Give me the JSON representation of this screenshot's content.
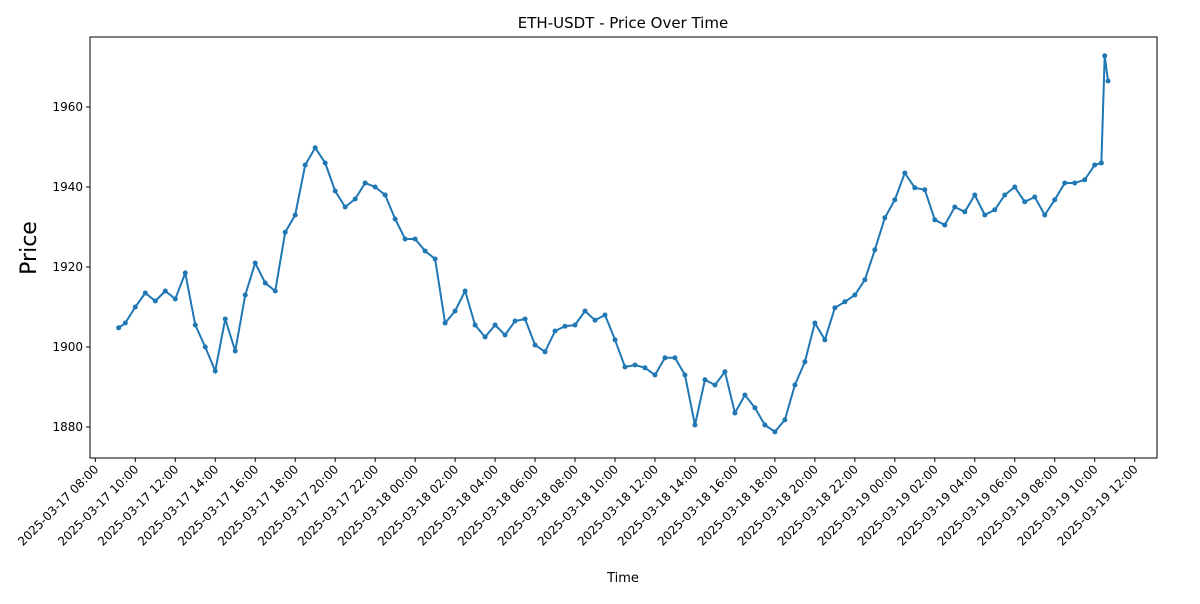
{
  "chart_data": {
    "type": "line",
    "title": "ETH-USDT - Price Over Time",
    "x_label": "Time",
    "y_label": "Price",
    "color": "#1f77b4",
    "x": [
      "2025-03-17 09:10",
      "2025-03-17 09:30",
      "2025-03-17 10:00",
      "2025-03-17 10:30",
      "2025-03-17 11:00",
      "2025-03-17 11:30",
      "2025-03-17 12:00",
      "2025-03-17 12:30",
      "2025-03-17 13:00",
      "2025-03-17 13:30",
      "2025-03-17 14:00",
      "2025-03-17 14:30",
      "2025-03-17 15:00",
      "2025-03-17 15:30",
      "2025-03-17 16:00",
      "2025-03-17 16:30",
      "2025-03-17 17:00",
      "2025-03-17 17:30",
      "2025-03-17 18:00",
      "2025-03-17 18:30",
      "2025-03-17 19:00",
      "2025-03-17 19:30",
      "2025-03-17 20:00",
      "2025-03-17 20:30",
      "2025-03-17 21:00",
      "2025-03-17 21:30",
      "2025-03-17 22:00",
      "2025-03-17 22:30",
      "2025-03-17 23:00",
      "2025-03-17 23:30",
      "2025-03-18 00:00",
      "2025-03-18 00:30",
      "2025-03-18 01:00",
      "2025-03-18 01:30",
      "2025-03-18 02:00",
      "2025-03-18 02:30",
      "2025-03-18 03:00",
      "2025-03-18 03:30",
      "2025-03-18 04:00",
      "2025-03-18 04:30",
      "2025-03-18 05:00",
      "2025-03-18 05:30",
      "2025-03-18 06:00",
      "2025-03-18 06:30",
      "2025-03-18 07:00",
      "2025-03-18 07:30",
      "2025-03-18 08:00",
      "2025-03-18 08:30",
      "2025-03-18 09:00",
      "2025-03-18 09:30",
      "2025-03-18 10:00",
      "2025-03-18 10:30",
      "2025-03-18 11:00",
      "2025-03-18 11:30",
      "2025-03-18 12:00",
      "2025-03-18 12:30",
      "2025-03-18 13:00",
      "2025-03-18 13:30",
      "2025-03-18 14:00",
      "2025-03-18 14:30",
      "2025-03-18 15:00",
      "2025-03-18 15:30",
      "2025-03-18 16:00",
      "2025-03-18 16:30",
      "2025-03-18 17:00",
      "2025-03-18 17:30",
      "2025-03-18 18:00",
      "2025-03-18 18:30",
      "2025-03-18 19:00",
      "2025-03-18 19:30",
      "2025-03-18 20:00",
      "2025-03-18 20:30",
      "2025-03-18 21:00",
      "2025-03-18 21:30",
      "2025-03-18 22:00",
      "2025-03-18 22:30",
      "2025-03-18 23:00",
      "2025-03-18 23:30",
      "2025-03-19 00:00",
      "2025-03-19 00:30",
      "2025-03-19 01:00",
      "2025-03-19 01:30",
      "2025-03-19 02:00",
      "2025-03-19 02:30",
      "2025-03-19 03:00",
      "2025-03-19 03:30",
      "2025-03-19 04:00",
      "2025-03-19 04:30",
      "2025-03-19 05:00",
      "2025-03-19 05:30",
      "2025-03-19 06:00",
      "2025-03-19 06:30",
      "2025-03-19 07:00",
      "2025-03-19 07:30",
      "2025-03-19 08:00",
      "2025-03-19 08:30",
      "2025-03-19 09:00",
      "2025-03-19 09:30",
      "2025-03-19 10:00",
      "2025-03-19 10:20",
      "2025-03-19 10:30",
      "2025-03-19 10:40"
    ],
    "values": [
      1904.8,
      1906,
      1910,
      1913.5,
      1911.5,
      1914,
      1912,
      1918.5,
      1905.5,
      1900,
      1894,
      1907,
      1899,
      1913,
      1921,
      1916,
      1914,
      1928.7,
      1933,
      1945.5,
      1949.8,
      1946,
      1939,
      1935,
      1937,
      1941,
      1940,
      1938,
      1932,
      1927,
      1927,
      1924,
      1922,
      1906,
      1909,
      1914,
      1905.5,
      1902.5,
      1905.5,
      1903,
      1906.5,
      1907,
      1900.5,
      1898.8,
      1904,
      1905.2,
      1905.5,
      1909,
      1906.7,
      1908,
      1901.8,
      1895,
      1895.5,
      1894.8,
      1893,
      1897.3,
      1897.3,
      1893,
      1880.5,
      1891.8,
      1890.5,
      1893.8,
      1883.5,
      1888,
      1884.8,
      1880.5,
      1878.8,
      1881.8,
      1890.5,
      1896.3,
      1906,
      1901.8,
      1909.8,
      1911.3,
      1913,
      1916.8,
      1924.3,
      1932.3,
      1936.8,
      1943.5,
      1939.8,
      1939.3,
      1931.8,
      1930.5,
      1935,
      1933.8,
      1938,
      1933,
      1934.3,
      1938,
      1940,
      1936.3,
      1937.5,
      1933,
      1936.8,
      1941,
      1941,
      1941.8,
      1945.5,
      1946,
      1972.8,
      1966.5
    ],
    "xlim": [
      "2025-03-17 07:44",
      "2025-03-19 13:07"
    ],
    "xticks": [
      "2025-03-17 08:00",
      "2025-03-17 10:00",
      "2025-03-17 12:00",
      "2025-03-17 14:00",
      "2025-03-17 16:00",
      "2025-03-17 18:00",
      "2025-03-17 20:00",
      "2025-03-17 22:00",
      "2025-03-18 00:00",
      "2025-03-18 02:00",
      "2025-03-18 04:00",
      "2025-03-18 06:00",
      "2025-03-18 08:00",
      "2025-03-18 10:00",
      "2025-03-18 12:00",
      "2025-03-18 14:00",
      "2025-03-18 16:00",
      "2025-03-18 18:00",
      "2025-03-18 20:00",
      "2025-03-18 22:00",
      "2025-03-19 00:00",
      "2025-03-19 02:00",
      "2025-03-19 04:00",
      "2025-03-19 06:00",
      "2025-03-19 08:00",
      "2025-03-19 10:00",
      "2025-03-19 12:00"
    ],
    "ylim": [
      1872.25,
      1977.5
    ],
    "yticks": [
      1880,
      1900,
      1920,
      1940,
      1960
    ],
    "grid": false
  }
}
